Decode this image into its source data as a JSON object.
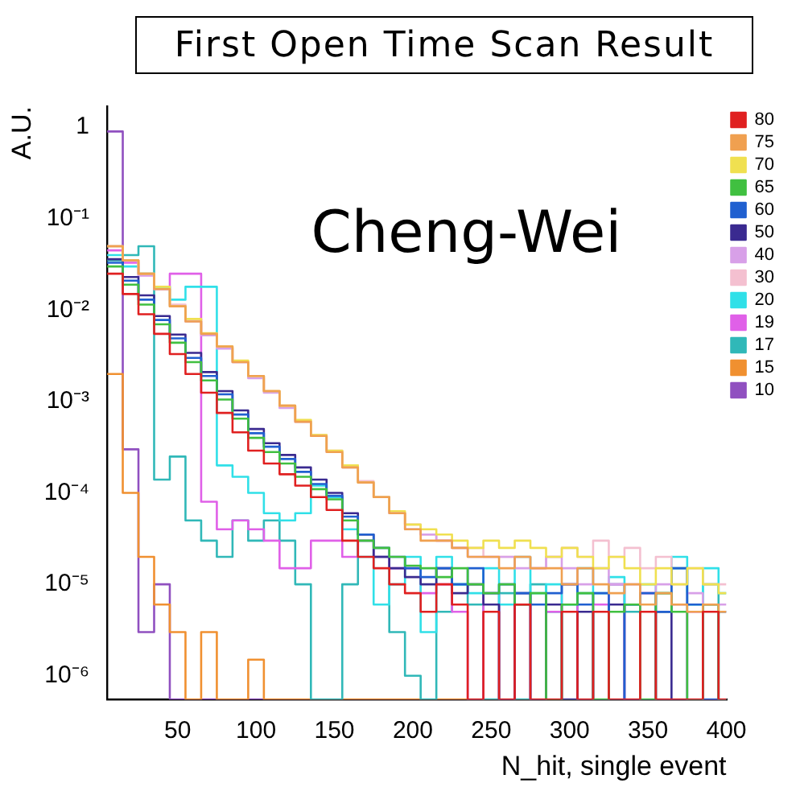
{
  "chart_data": {
    "type": "histogram",
    "title": "First Open Time Scan Result",
    "xlabel": "N_hit, single event",
    "ylabel": "A.U.",
    "annotations": [
      "Cheng-Wei"
    ],
    "bins": [
      5,
      15,
      25,
      35,
      45,
      55,
      65,
      75,
      85,
      95,
      105,
      115,
      125,
      135,
      145,
      155,
      165,
      175,
      185,
      195,
      205,
      215,
      225,
      235,
      245,
      255,
      265,
      275,
      285,
      295,
      305,
      315,
      325,
      335,
      345,
      355,
      365,
      375,
      385,
      395,
      400
    ],
    "xlim": [
      5,
      400
    ],
    "xticks": [
      50,
      100,
      150,
      200,
      250,
      300,
      350,
      400
    ],
    "ylim": [
      5.5e-07,
      1.7
    ],
    "yticks": [
      {
        "value": 1,
        "label": "1"
      },
      {
        "value": 0.1,
        "label": "10⁻¹"
      },
      {
        "value": 0.01,
        "label": "10⁻²"
      },
      {
        "value": 0.001,
        "label": "10⁻³"
      },
      {
        "value": 0.0001,
        "label": "10⁻⁴"
      },
      {
        "value": 1e-05,
        "label": "10⁻⁵"
      },
      {
        "value": 1e-06,
        "label": "10⁻⁶"
      }
    ],
    "log": "y",
    "legend": "top right",
    "series": [
      {
        "name": "80",
        "color": "#e02020",
        "values": [
          0.025,
          0.015,
          0.009,
          0.0055,
          0.0033,
          0.002,
          0.00125,
          0.00075,
          0.00046,
          0.00029,
          0.00021,
          0.00016,
          0.00012,
          9e-05,
          6.5e-05,
          3e-05,
          2e-05,
          1.5e-05,
          1e-05,
          8e-06,
          5e-06,
          1e-05,
          6e-06,
          null,
          5e-06,
          null,
          6e-06,
          null,
          null,
          5e-06,
          null,
          5e-06,
          null,
          null,
          5e-06,
          null,
          null,
          null,
          5e-06,
          null
        ]
      },
      {
        "name": "75",
        "color": "#f0a050",
        "values": [
          0.05,
          0.035,
          0.025,
          0.017,
          0.011,
          0.0075,
          0.0055,
          0.004,
          0.0027,
          0.0019,
          0.0013,
          0.0009,
          0.0006,
          0.00042,
          0.00028,
          0.00019,
          0.00013,
          9e-05,
          6e-05,
          4e-05,
          3e-05,
          3e-05,
          2.5e-05,
          2e-05,
          2e-05,
          1.5e-05,
          2e-05,
          1.5e-05,
          1.5e-05,
          1e-05,
          1.5e-05,
          1e-05,
          8e-06,
          1e-05,
          6e-06,
          8e-06,
          6e-06,
          5e-06,
          6e-06,
          5e-06
        ]
      },
      {
        "name": "70",
        "color": "#f0e050",
        "values": [
          0.05,
          0.035,
          0.025,
          0.018,
          0.011,
          0.008,
          0.0056,
          0.004,
          0.0028,
          0.0019,
          0.0013,
          0.0009,
          0.00063,
          0.00043,
          0.00029,
          0.0002,
          0.00013,
          9e-05,
          6.3e-05,
          4.5e-05,
          4e-05,
          3.5e-05,
          3e-05,
          2.5e-05,
          3e-05,
          2.5e-05,
          3e-05,
          2.5e-05,
          2e-05,
          2.5e-05,
          2e-05,
          1.5e-05,
          2e-05,
          1.5e-05,
          1e-05,
          1.5e-05,
          1e-05,
          1.5e-05,
          1e-05,
          8e-06
        ]
      },
      {
        "name": "65",
        "color": "#40c040",
        "values": [
          0.03,
          0.019,
          0.0115,
          0.007,
          0.0044,
          0.0027,
          0.0017,
          0.00105,
          0.00065,
          0.0004,
          0.00028,
          0.00021,
          0.00015,
          0.00011,
          8.5e-05,
          5e-05,
          3e-05,
          2.5e-05,
          2e-05,
          1.6e-05,
          1.5e-05,
          1.2e-05,
          1.5e-05,
          1e-05,
          8e-06,
          1e-05,
          6e-06,
          8e-06,
          null,
          6e-06,
          8e-06,
          null,
          5e-06,
          6e-06,
          null,
          8e-06,
          5e-06,
          null,
          6e-06,
          null
        ]
      },
      {
        "name": "60",
        "color": "#2060d0",
        "values": [
          0.033,
          0.021,
          0.013,
          0.0078,
          0.0049,
          0.003,
          0.0019,
          0.0012,
          0.00072,
          0.00045,
          0.00032,
          0.000235,
          0.00017,
          0.000125,
          9.3e-05,
          5.5e-05,
          3.5e-05,
          2.5e-05,
          2e-05,
          1.5e-05,
          1.2e-05,
          1.5e-05,
          1e-05,
          1.5e-05,
          8e-06,
          1e-05,
          8e-06,
          6e-06,
          8e-06,
          1e-05,
          6e-06,
          8e-06,
          null,
          6e-06,
          8e-06,
          5e-06,
          1.5e-05,
          6e-06,
          null,
          5e-06
        ]
      },
      {
        "name": "50",
        "color": "#3a2a90",
        "values": [
          0.036,
          0.023,
          0.0145,
          0.0086,
          0.0054,
          0.0034,
          0.0021,
          0.0013,
          0.0008,
          0.0005,
          0.00035,
          0.00026,
          0.00019,
          0.00014,
          0.0001,
          6e-05,
          3.5e-05,
          2e-05,
          1.5e-05,
          1.2e-05,
          1e-05,
          1.5e-05,
          8e-06,
          1e-05,
          6e-06,
          null,
          8e-06,
          null,
          6e-06,
          null,
          5e-06,
          null,
          6e-06,
          null,
          null,
          5e-06,
          null,
          null,
          null,
          null
        ]
      },
      {
        "name": "40",
        "color": "#d8a0e8",
        "values": [
          0.05,
          0.035,
          0.024,
          0.017,
          0.011,
          0.0075,
          0.0053,
          0.0038,
          0.0027,
          0.0018,
          0.00125,
          0.00085,
          0.0006,
          0.00042,
          0.00028,
          0.00019,
          0.00013,
          9e-05,
          6e-05,
          4e-05,
          3.5e-05,
          3e-05,
          2.5e-05,
          2e-05,
          2e-05,
          2e-05,
          1.5e-05,
          1.5e-05,
          2e-05,
          1.5e-05,
          1e-05,
          1.5e-05,
          1e-05,
          1e-05,
          8e-06,
          1e-05,
          6e-06,
          8e-06,
          6e-06,
          6e-06
        ]
      },
      {
        "name": "30",
        "color": "#f4c0d0",
        "values": [
          0.05,
          0.035,
          0.025,
          0.017,
          0.0115,
          0.008,
          0.0055,
          0.0039,
          0.0027,
          0.0019,
          0.0013,
          0.0009,
          0.00062,
          0.00043,
          0.00029,
          0.0002,
          0.000135,
          9e-05,
          6e-05,
          4.5e-05,
          3.5e-05,
          3e-05,
          2.5e-05,
          2.5e-05,
          2e-05,
          2e-05,
          2e-05,
          1.5e-05,
          2e-05,
          2.5e-05,
          2e-05,
          3e-05,
          2e-05,
          2.5e-05,
          1.5e-05,
          2e-05,
          1e-05,
          1.5e-05,
          1e-05,
          1e-05
        ]
      },
      {
        "name": "20",
        "color": "#30e0e8",
        "values": [
          0.04,
          0.03,
          0.025,
          0.018,
          0.013,
          0.018,
          0.018,
          0.0002,
          0.00015,
          0.0001,
          6e-05,
          5e-05,
          6e-05,
          0.00012,
          9e-05,
          4e-05,
          2e-05,
          6e-06,
          1e-05,
          2e-05,
          3e-06,
          2e-05,
          1e-05,
          8e-06,
          1.5e-05,
          6e-06,
          2e-05,
          8e-06,
          1e-05,
          6e-06,
          1.5e-05,
          8e-06,
          1.2e-05,
          6e-06,
          1e-05,
          5e-06,
          2e-05,
          6e-06,
          1.5e-05,
          8e-06
        ]
      },
      {
        "name": "19",
        "color": "#e060e8",
        "values": [
          0.045,
          0.033,
          0.024,
          0.017,
          0.025,
          0.025,
          8e-05,
          4e-05,
          5e-05,
          4e-05,
          3e-05,
          1.5e-05,
          1.5e-05,
          3e-05,
          3e-05,
          2e-05,
          3e-05,
          2e-05,
          1.5e-05,
          1.5e-05,
          8e-06,
          1e-05,
          5e-06,
          null,
          8e-06,
          null,
          6e-06,
          null,
          5e-06,
          1e-05,
          null,
          6e-06,
          1e-05,
          null,
          8e-06,
          null,
          null,
          5e-06,
          null,
          null
        ]
      },
      {
        "name": "17",
        "color": "#30b8b8",
        "values": [
          0.035,
          0.04,
          0.05,
          0.00014,
          0.00025,
          5e-05,
          3e-05,
          2e-05,
          5e-05,
          3e-05,
          5e-05,
          3e-05,
          1e-05,
          null,
          null,
          1e-05,
          3e-05,
          2e-05,
          3e-06,
          1e-06,
          null,
          5e-06,
          1e-05,
          6e-06,
          null,
          8e-06,
          null,
          1e-05,
          5e-06,
          null,
          8e-06,
          null,
          1e-05,
          5e-06,
          null,
          8e-06,
          1.5e-05,
          null,
          1e-05,
          null
        ]
      },
      {
        "name": "15",
        "color": "#f09030",
        "values": [
          0.002,
          0.0001,
          2e-05,
          6e-06,
          3e-06,
          null,
          3e-06,
          null,
          null,
          1.5e-06,
          null,
          null,
          null,
          null,
          null,
          null,
          null,
          null,
          null,
          null,
          null,
          null,
          null,
          null,
          null,
          null,
          null,
          null,
          null,
          null,
          null,
          null,
          null,
          null,
          null,
          null,
          null,
          null,
          null,
          null
        ]
      },
      {
        "name": "10",
        "color": "#9050c0",
        "values": [
          0.9,
          0.0003,
          3e-06,
          1e-05,
          null,
          null,
          null,
          null,
          null,
          null,
          null,
          null,
          null,
          null,
          null,
          null,
          null,
          null,
          null,
          null,
          null,
          null,
          null,
          null,
          null,
          null,
          null,
          null,
          null,
          null,
          null,
          null,
          null,
          null,
          null,
          null,
          null,
          null,
          null,
          null
        ]
      }
    ]
  }
}
